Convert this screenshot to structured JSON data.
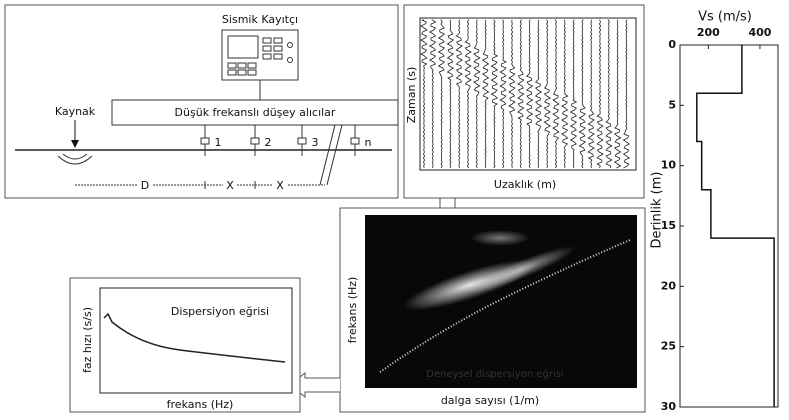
{
  "schematic": {
    "recorder_label": "Sismik Kayıtçı",
    "source_label": "Kaynak",
    "receivers_label": "Düşük frekanslı düşey alıcılar",
    "receivers": [
      "1",
      "2",
      "3",
      "n"
    ],
    "spacing": [
      "D",
      "X",
      "X"
    ]
  },
  "seismogram": {
    "y_label": "Zaman (s)",
    "x_label": "Uzaklık (m)"
  },
  "dispersion_image": {
    "y_label": "frekans (Hz)",
    "x_label": "dalga sayısı (1/m)",
    "overlay": "Deneysel dispersiyon eğrisi"
  },
  "dispersion_curve": {
    "title": "Dispersiyon eğrisi",
    "y_label": "faz hızı (s/s)",
    "x_label": "frekans (Hz)"
  },
  "vs_profile": {
    "x_label": "Vs (m/s)",
    "y_label": "Derinlik (m)",
    "xlim": [
      90,
      470
    ],
    "ylim": [
      0,
      30
    ],
    "xticks": [
      200,
      400
    ],
    "yticks": [
      0,
      5,
      10,
      15,
      20,
      25,
      30
    ],
    "depth": [
      0,
      4,
      4,
      8,
      8,
      12,
      12,
      16,
      16,
      30
    ],
    "vs": [
      330,
      330,
      155,
      155,
      174,
      174,
      210,
      210,
      455,
      455
    ]
  }
}
